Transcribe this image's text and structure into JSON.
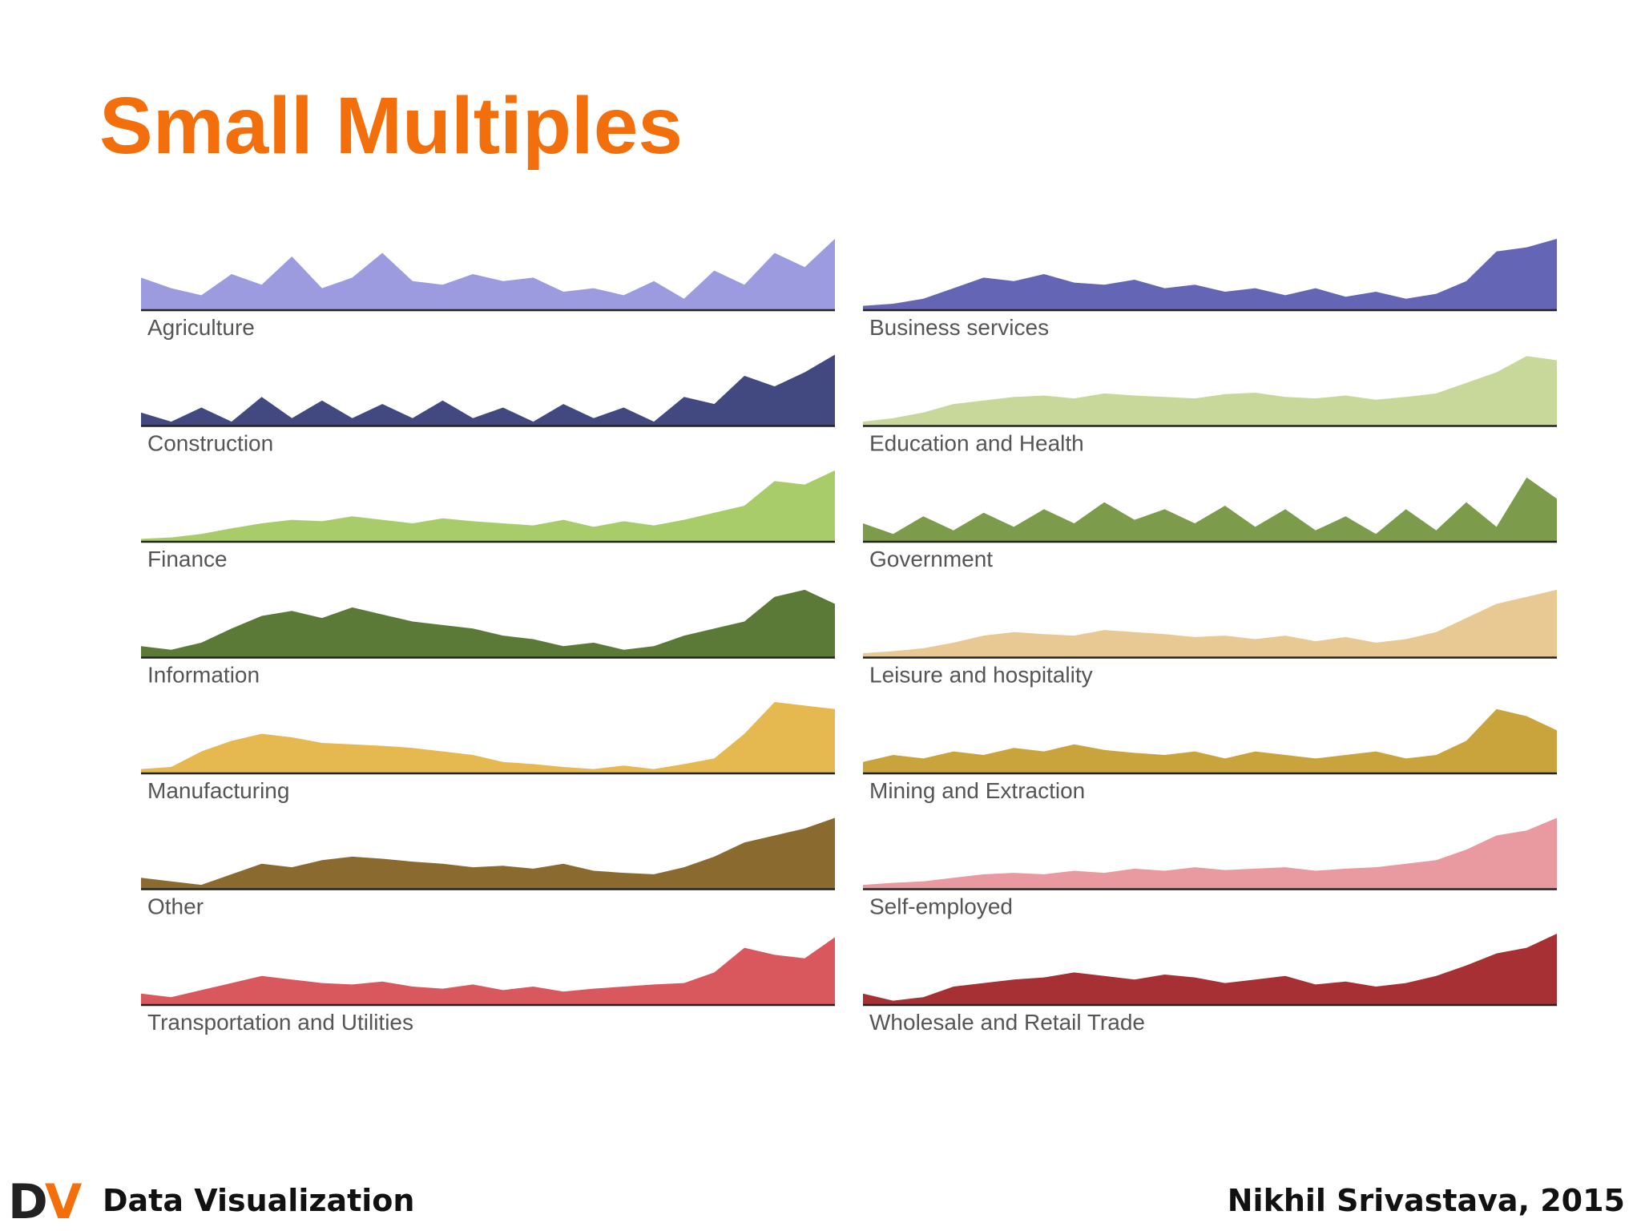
{
  "slide": {
    "title": "Small Multiples"
  },
  "footer": {
    "logo_d": "D",
    "logo_v": "V",
    "left_text": "Data Visualization",
    "right_text": "Nikhil Srivastava, 2015"
  },
  "colors": {
    "title": "#f36f0c",
    "axis": "#222222",
    "label": "#555555"
  },
  "chart_data": {
    "type": "area",
    "layout": "small-multiples",
    "ylim": [
      0,
      100
    ],
    "x_points": 24,
    "panels": [
      {
        "label": "Agriculture",
        "color": "#9c9be0",
        "values": [
          45,
          30,
          20,
          50,
          35,
          75,
          30,
          45,
          80,
          40,
          35,
          50,
          40,
          45,
          25,
          30,
          20,
          40,
          15,
          55,
          35,
          80,
          60,
          100
        ]
      },
      {
        "label": "Business services",
        "color": "#6466b5",
        "values": [
          5,
          8,
          15,
          30,
          45,
          40,
          50,
          38,
          35,
          42,
          30,
          35,
          25,
          30,
          20,
          30,
          18,
          25,
          15,
          22,
          40,
          82,
          88,
          100
        ]
      },
      {
        "label": "Construction",
        "color": "#414980",
        "values": [
          18,
          5,
          25,
          5,
          40,
          10,
          35,
          10,
          30,
          10,
          35,
          10,
          25,
          5,
          30,
          10,
          25,
          5,
          40,
          30,
          70,
          55,
          75,
          100
        ]
      },
      {
        "label": "Education and Health",
        "color": "#c8d89a",
        "values": [
          5,
          10,
          18,
          30,
          35,
          40,
          42,
          38,
          45,
          42,
          40,
          38,
          44,
          46,
          40,
          38,
          42,
          36,
          40,
          45,
          60,
          75,
          98,
          92
        ]
      },
      {
        "label": "Finance",
        "color": "#a9cc6b",
        "values": [
          3,
          5,
          10,
          18,
          25,
          30,
          28,
          35,
          30,
          25,
          32,
          28,
          25,
          22,
          30,
          20,
          28,
          22,
          30,
          40,
          50,
          85,
          80,
          100
        ]
      },
      {
        "label": "Government",
        "color": "#7c9b4b",
        "values": [
          25,
          10,
          35,
          15,
          40,
          20,
          45,
          25,
          55,
          30,
          45,
          25,
          50,
          20,
          45,
          15,
          35,
          10,
          45,
          15,
          55,
          20,
          90,
          60
        ]
      },
      {
        "label": "Information",
        "color": "#5c7a37",
        "values": [
          15,
          10,
          20,
          40,
          58,
          65,
          55,
          70,
          60,
          50,
          45,
          40,
          30,
          25,
          15,
          20,
          10,
          15,
          30,
          40,
          50,
          85,
          95,
          75
        ]
      },
      {
        "label": "Leisure and hospitality",
        "color": "#e8c893",
        "values": [
          5,
          8,
          12,
          20,
          30,
          35,
          32,
          30,
          38,
          35,
          32,
          28,
          30,
          25,
          30,
          22,
          28,
          20,
          25,
          35,
          55,
          75,
          85,
          95
        ]
      },
      {
        "label": "Manufacturing",
        "color": "#e6b850",
        "values": [
          5,
          8,
          30,
          45,
          55,
          50,
          42,
          40,
          38,
          35,
          30,
          25,
          15,
          12,
          8,
          5,
          10,
          5,
          12,
          20,
          55,
          100,
          95,
          90
        ]
      },
      {
        "label": "Mining and Extraction",
        "color": "#c9a43c",
        "values": [
          15,
          25,
          20,
          30,
          25,
          35,
          30,
          40,
          32,
          28,
          25,
          30,
          20,
          30,
          25,
          20,
          25,
          30,
          20,
          25,
          45,
          90,
          80,
          60
        ]
      },
      {
        "label": "Other",
        "color": "#8b6a30",
        "values": [
          15,
          10,
          5,
          20,
          35,
          30,
          40,
          45,
          42,
          38,
          35,
          30,
          32,
          28,
          35,
          25,
          22,
          20,
          30,
          45,
          65,
          75,
          85,
          100
        ]
      },
      {
        "label": "Self-employed",
        "color": "#e89aa0",
        "values": [
          5,
          8,
          10,
          15,
          20,
          22,
          20,
          25,
          22,
          28,
          25,
          30,
          26,
          28,
          30,
          25,
          28,
          30,
          35,
          40,
          55,
          75,
          82,
          100
        ]
      },
      {
        "label": "Transportation and Utilities",
        "color": "#d9585e",
        "values": [
          15,
          10,
          20,
          30,
          40,
          35,
          30,
          28,
          32,
          25,
          22,
          28,
          20,
          25,
          18,
          22,
          25,
          28,
          30,
          45,
          80,
          70,
          65,
          95
        ]
      },
      {
        "label": "Wholesale and Retail Trade",
        "color": "#a73034",
        "values": [
          15,
          5,
          10,
          25,
          30,
          35,
          38,
          45,
          40,
          35,
          42,
          38,
          30,
          35,
          40,
          28,
          32,
          25,
          30,
          40,
          55,
          72,
          80,
          100
        ]
      }
    ]
  }
}
